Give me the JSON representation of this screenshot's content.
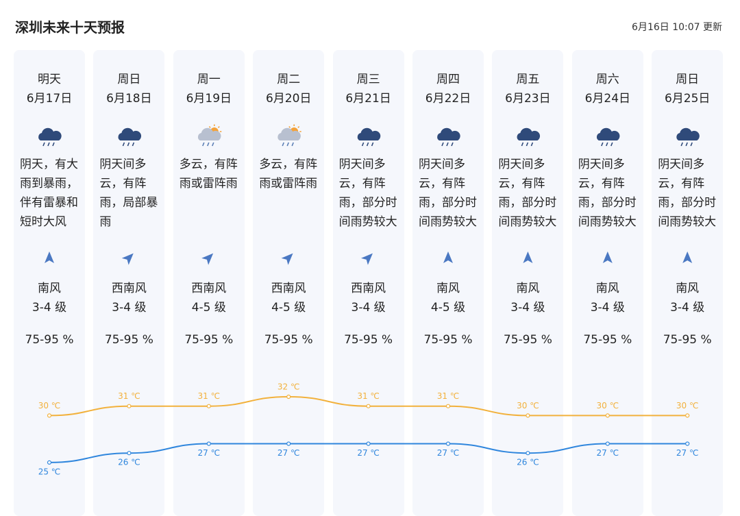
{
  "header": {
    "title": "深圳未来十天预报",
    "updated": "6月16日 10:07 更新"
  },
  "days": [
    {
      "day": "明天",
      "date": "6月17日",
      "description": "阴天，有大雨到暴雨，伴有雷暴和短时大风",
      "wind_direction": "南风",
      "wind_level": "3-4 级",
      "humidity": "75-95 %",
      "high": {
        "value": 30,
        "label": "30 ℃"
      },
      "low": {
        "value": 25,
        "label": "25 ℃"
      }
    },
    {
      "day": "周日",
      "date": "6月18日",
      "description": "阴天间多云，有阵雨，局部暴雨",
      "wind_direction": "西南风",
      "wind_level": "3-4 级",
      "humidity": "75-95 %",
      "high": {
        "value": 31,
        "label": "31 ℃"
      },
      "low": {
        "value": 26,
        "label": "26 ℃"
      }
    },
    {
      "day": "周一",
      "date": "6月19日",
      "description": "多云，有阵雨或雷阵雨",
      "wind_direction": "西南风",
      "wind_level": "4-5 级",
      "humidity": "75-95 %",
      "high": {
        "value": 31,
        "label": "31 ℃"
      },
      "low": {
        "value": 27,
        "label": "27 ℃"
      }
    },
    {
      "day": "周二",
      "date": "6月20日",
      "description": "多云，有阵雨或雷阵雨",
      "wind_direction": "西南风",
      "wind_level": "4-5 级",
      "humidity": "75-95 %",
      "high": {
        "value": 32,
        "label": "32 ℃"
      },
      "low": {
        "value": 27,
        "label": "27 ℃"
      }
    },
    {
      "day": "周三",
      "date": "6月21日",
      "description": "阴天间多云，有阵雨，部分时间雨势较大",
      "wind_direction": "西南风",
      "wind_level": "3-4 级",
      "humidity": "75-95 %",
      "high": {
        "value": 31,
        "label": "31 ℃"
      },
      "low": {
        "value": 27,
        "label": "27 ℃"
      }
    },
    {
      "day": "周四",
      "date": "6月22日",
      "description": "阴天间多云，有阵雨，部分时间雨势较大",
      "wind_direction": "南风",
      "wind_level": "4-5 级",
      "humidity": "75-95 %",
      "high": {
        "value": 31,
        "label": "31 ℃"
      },
      "low": {
        "value": 27,
        "label": "27 ℃"
      }
    },
    {
      "day": "周五",
      "date": "6月23日",
      "description": "阴天间多云，有阵雨，部分时间雨势较大",
      "wind_direction": "南风",
      "wind_level": "3-4 级",
      "humidity": "75-95 %",
      "high": {
        "value": 30,
        "label": "30 ℃"
      },
      "low": {
        "value": 26,
        "label": "26 ℃"
      }
    },
    {
      "day": "周六",
      "date": "6月24日",
      "description": "阴天间多云，有阵雨，部分时间雨势较大",
      "wind_direction": "南风",
      "wind_level": "3-4 级",
      "humidity": "75-95 %",
      "high": {
        "value": 30,
        "label": "30 ℃"
      },
      "low": {
        "value": 27,
        "label": "27 ℃"
      }
    },
    {
      "day": "周日",
      "date": "6月25日",
      "description": "阴天间多云，有阵雨，部分时间雨势较大",
      "wind_direction": "南风",
      "wind_level": "3-4 级",
      "humidity": "75-95 %",
      "high": {
        "value": 30,
        "label": "30 ℃"
      },
      "low": {
        "value": 27,
        "label": "27 ℃"
      }
    }
  ]
}
